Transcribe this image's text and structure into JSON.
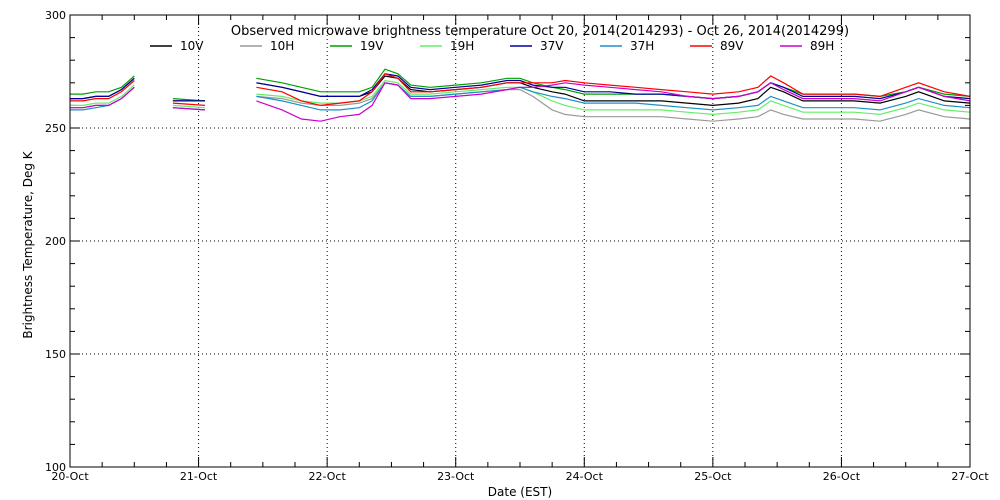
{
  "chart_data": {
    "type": "line",
    "title": "Observed microwave brightness temperature Oct 20, 2014(2014293) - Oct 26, 2014(2014299)",
    "xlabel": "Date (EST)",
    "ylabel": "Brightness Temperature, Deg K",
    "ylim": [
      100,
      300
    ],
    "xlim": [
      0,
      7
    ],
    "y_ticks": [
      "100",
      "150",
      "200",
      "250",
      "300"
    ],
    "y_tick_values": [
      100,
      150,
      200,
      250,
      300
    ],
    "x_ticks": [
      "20-Oct",
      "21-Oct",
      "22-Oct",
      "23-Oct",
      "24-Oct",
      "25-Oct",
      "26-Oct",
      "27-Oct"
    ],
    "x_tick_values": [
      0,
      1,
      2,
      3,
      4,
      5,
      6,
      7
    ],
    "grid": true,
    "legend_position": "top",
    "x": [
      0.0,
      0.1,
      0.2,
      0.3,
      0.4,
      0.5,
      0.55,
      0.8,
      1.05,
      1.4,
      1.45,
      1.65,
      1.8,
      1.95,
      2.1,
      2.25,
      2.35,
      2.45,
      2.55,
      2.65,
      2.8,
      3.0,
      3.2,
      3.4,
      3.5,
      3.6,
      3.75,
      3.85,
      4.0,
      4.2,
      4.4,
      4.6,
      4.8,
      5.0,
      5.2,
      5.35,
      5.45,
      5.55,
      5.7,
      5.9,
      6.1,
      6.3,
      6.5,
      6.6,
      6.8,
      7.0
    ],
    "series": [
      {
        "name": "10V",
        "color": "#000000",
        "values": [
          263,
          263,
          264,
          264,
          267,
          272,
          null,
          262,
          262,
          null,
          270,
          268,
          266,
          264,
          264,
          264,
          266,
          273,
          272,
          267,
          266,
          267,
          268,
          270,
          270,
          268,
          266,
          265,
          262,
          262,
          262,
          262,
          261,
          260,
          261,
          263,
          268,
          266,
          262,
          262,
          262,
          261,
          264,
          266,
          262,
          261
        ]
      },
      {
        "name": "10H",
        "color": "#9a9a9a",
        "values": [
          259,
          259,
          260,
          260,
          263,
          268,
          null,
          259,
          258,
          null,
          264,
          263,
          261,
          260,
          260,
          261,
          263,
          270,
          269,
          264,
          264,
          265,
          266,
          267,
          267,
          264,
          258,
          256,
          255,
          255,
          255,
          255,
          254,
          253,
          254,
          255,
          258,
          256,
          254,
          254,
          254,
          253,
          256,
          258,
          255,
          254
        ]
      },
      {
        "name": "19V",
        "color": "#00a000",
        "values": [
          265,
          265,
          266,
          266,
          268,
          273,
          null,
          263,
          262,
          null,
          272,
          270,
          268,
          266,
          266,
          266,
          268,
          276,
          274,
          269,
          268,
          269,
          270,
          272,
          272,
          270,
          268,
          267,
          265,
          265,
          265,
          265,
          264,
          263,
          264,
          266,
          270,
          268,
          265,
          265,
          265,
          264,
          266,
          268,
          265,
          264
        ]
      },
      {
        "name": "19H",
        "color": "#66ee66",
        "values": [
          260,
          260,
          261,
          261,
          264,
          269,
          null,
          260,
          259,
          null,
          265,
          264,
          262,
          261,
          261,
          262,
          264,
          271,
          270,
          265,
          265,
          266,
          267,
          268,
          268,
          266,
          262,
          260,
          258,
          258,
          258,
          258,
          257,
          256,
          257,
          258,
          262,
          260,
          257,
          257,
          257,
          256,
          259,
          261,
          258,
          257
        ]
      },
      {
        "name": "37V",
        "color": "#0000a0",
        "values": [
          263,
          263,
          264,
          264,
          267,
          272,
          null,
          262,
          262,
          null,
          270,
          268,
          266,
          264,
          264,
          264,
          267,
          274,
          273,
          268,
          267,
          268,
          269,
          271,
          271,
          269,
          268,
          268,
          266,
          266,
          265,
          265,
          264,
          263,
          264,
          266,
          270,
          268,
          264,
          264,
          264,
          263,
          266,
          268,
          264,
          263
        ]
      },
      {
        "name": "37H",
        "color": "#1e90c8",
        "values": [
          258,
          258,
          259,
          260,
          263,
          268,
          null,
          259,
          258,
          null,
          264,
          262,
          260,
          258,
          258,
          259,
          262,
          270,
          269,
          264,
          264,
          265,
          266,
          267,
          268,
          266,
          264,
          263,
          261,
          261,
          261,
          260,
          259,
          258,
          259,
          260,
          264,
          262,
          259,
          259,
          259,
          258,
          261,
          263,
          260,
          259
        ]
      },
      {
        "name": "89V",
        "color": "#ff0000",
        "values": [
          262,
          262,
          263,
          263,
          266,
          271,
          null,
          261,
          260,
          null,
          268,
          266,
          262,
          260,
          261,
          262,
          266,
          274,
          272,
          266,
          266,
          267,
          268,
          270,
          270,
          270,
          270,
          271,
          270,
          269,
          268,
          267,
          266,
          265,
          266,
          268,
          273,
          270,
          265,
          265,
          265,
          264,
          268,
          270,
          266,
          264
        ]
      },
      {
        "name": "89H",
        "color": "#cc00cc",
        "values": [
          259,
          259,
          260,
          260,
          263,
          268,
          null,
          259,
          258,
          null,
          262,
          258,
          254,
          253,
          255,
          256,
          260,
          270,
          269,
          263,
          263,
          264,
          265,
          267,
          268,
          268,
          269,
          270,
          269,
          268,
          267,
          266,
          264,
          263,
          264,
          266,
          270,
          267,
          263,
          263,
          263,
          262,
          266,
          268,
          264,
          262
        ]
      }
    ]
  }
}
